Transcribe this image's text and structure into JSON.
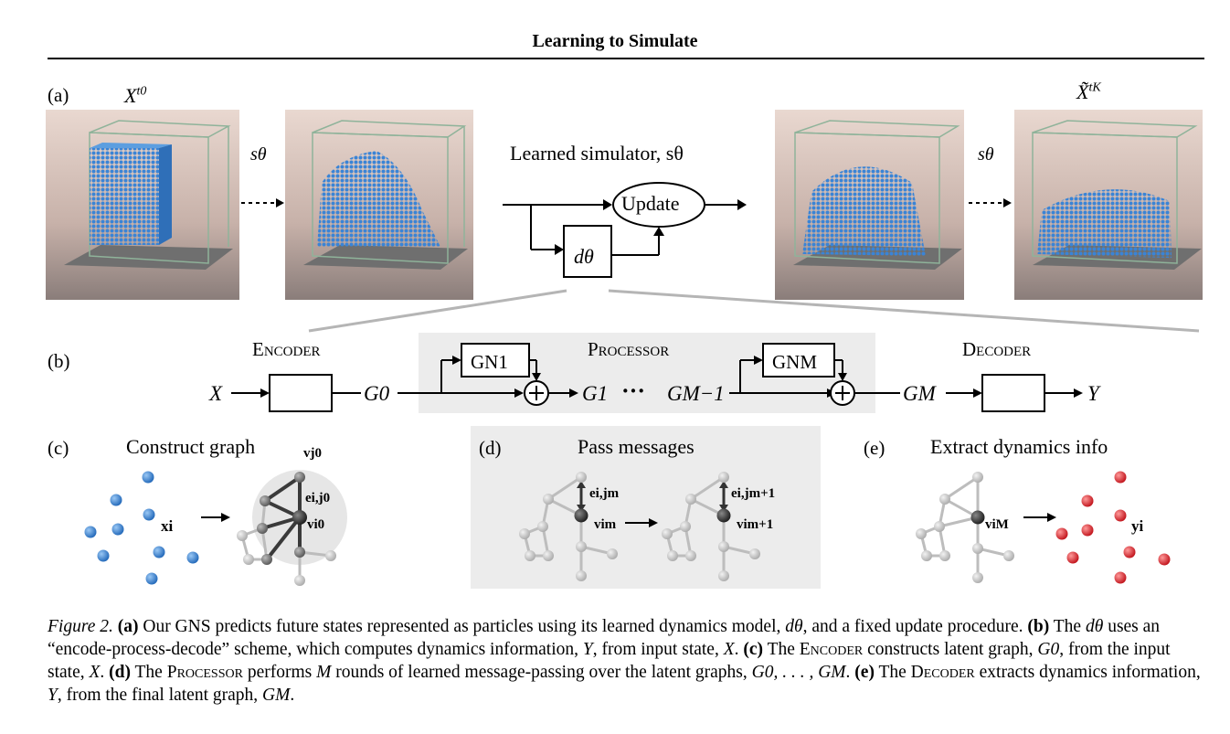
{
  "header": {
    "title": "Learning to Simulate"
  },
  "panel_a": {
    "label": "(a)",
    "x_start": "X",
    "x_start_sup": "t0",
    "x_end": "X̃",
    "x_end_sup": "tK",
    "s_theta_left": "sθ",
    "s_theta_right": "sθ",
    "simulator_label": "Learned simulator, sθ",
    "update_label": "Update",
    "d_theta": "dθ"
  },
  "panel_b": {
    "label": "(b)",
    "encoder": "Encoder",
    "processor": "Processor",
    "decoder": "Decoder",
    "x": "X",
    "y": "Y",
    "g0": "G0",
    "g1": "G1",
    "dots": "···",
    "gm1": "GM−1",
    "gm": "GM",
    "gn1": "GN1",
    "gnm": "GNM"
  },
  "panel_c": {
    "label": "(c)",
    "title": "Construct graph",
    "xi": "xi",
    "vj0": "vj0",
    "eij0": "ei,j0",
    "vi0": "vi0"
  },
  "panel_d": {
    "label": "(d)",
    "title": "Pass messages",
    "eijm": "ei,jm",
    "vim": "vim",
    "eijm1": "ei,jm+1",
    "vim1": "vim+1"
  },
  "panel_e": {
    "label": "(e)",
    "title": "Extract dynamics info",
    "viM": "viM",
    "yi": "yi"
  },
  "colors": {
    "blue_particle": "#2f7fd0",
    "red_particle": "#e0202a",
    "shade": "#ececec",
    "gray_line": "#b5b5b5"
  },
  "caption": {
    "fig": "Figure 2.",
    "a_lab": "(a)",
    "a_text": " Our GNS predicts future states represented as particles using its learned dynamics model, ",
    "a_dtheta": "dθ",
    "a_text2": ", and a fixed update procedure.",
    "b_lab": "(b)",
    "b_text1": " The ",
    "b_dtheta": "dθ",
    "b_text2": " uses an “encode-process-decode” scheme, which computes dynamics information, ",
    "b_y": "Y",
    "b_text3": ", from input state, ",
    "b_x": "X",
    "b_text4": ". ",
    "c_lab": "(c)",
    "c_text1": " The ",
    "c_enc": "Encoder",
    "c_text2": " constructs latent graph, ",
    "c_g0": "G0",
    "c_text3": ", from the input state, ",
    "c_x": "X",
    "c_text4": ". ",
    "d_lab": "(d)",
    "d_text1": " The ",
    "d_proc": "Processor",
    "d_text2": " performs ",
    "d_m": "M",
    "d_text3": " rounds of learned message-passing over the latent graphs, ",
    "d_graphs": "G0, . . . , GM",
    "d_text4": ". ",
    "e_lab": "(e)",
    "e_text1": " The ",
    "e_dec": "Decoder",
    "e_text2": " extracts dynamics information, ",
    "e_y": "Y",
    "e_text3": ", from the final latent graph, ",
    "e_gm": "GM",
    "e_text4": "."
  }
}
